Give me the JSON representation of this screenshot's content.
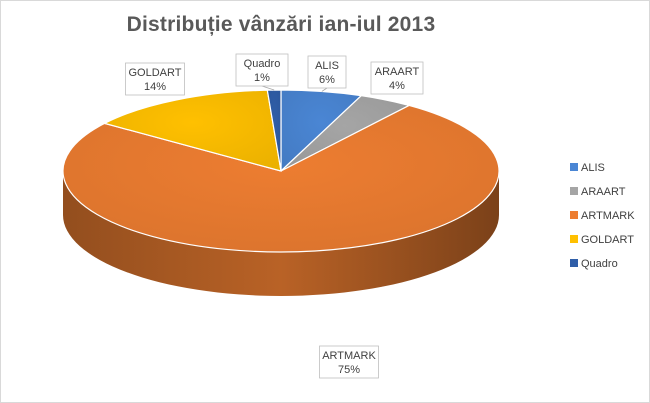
{
  "chart_data": {
    "type": "pie",
    "title": "Distribuție  vânzări ian-iul 2013",
    "legend_position": "right",
    "slices": [
      {
        "label": "ALIS",
        "value": 6,
        "display": "6%",
        "color": "#4a86d4"
      },
      {
        "label": "ARAART",
        "value": 4,
        "display": "4%",
        "color": "#a5a5a5"
      },
      {
        "label": "ARTMARK",
        "value": 75,
        "display": "75%",
        "color": "#ed7d31"
      },
      {
        "label": "GOLDART",
        "value": 14,
        "display": "14%",
        "color": "#ffc000"
      },
      {
        "label": "Quadro",
        "value": 1,
        "display": "1%",
        "color": "#2f5ea8"
      }
    ]
  }
}
